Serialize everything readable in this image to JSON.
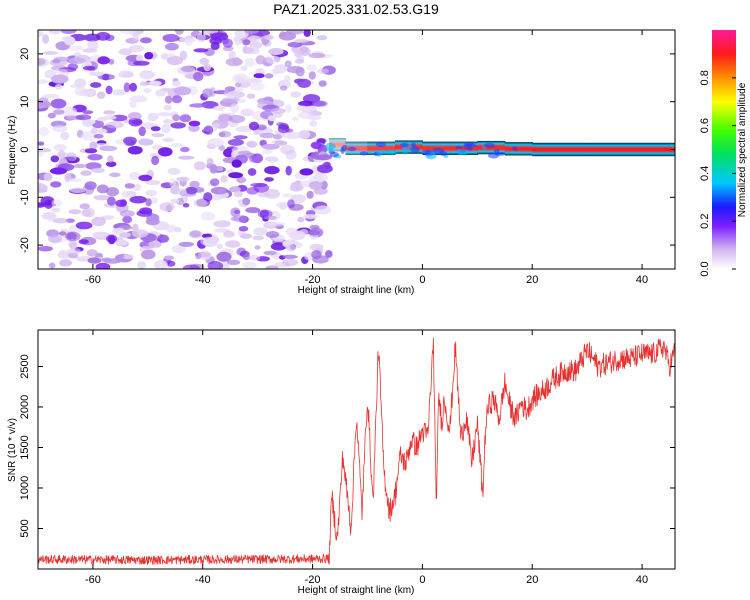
{
  "title": "PAZ1.2025.331.02.53.G19",
  "chart_data": [
    {
      "type": "heatmap",
      "title": "PAZ1.2025.331.02.53.G19",
      "xlabel": "Height of straight line (km)",
      "ylabel": "Frequency (Hz)",
      "xlim": [
        -70,
        46
      ],
      "ylim": [
        -25,
        25
      ],
      "xticks": [
        -60,
        -40,
        -20,
        0,
        20,
        40
      ],
      "yticks": [
        -20,
        -10,
        0,
        10,
        20
      ],
      "xtick_labels": [
        "-60",
        "-40",
        "-20",
        "0",
        "20",
        "40"
      ],
      "ytick_labels": [
        "-20",
        "-10",
        "0",
        "10",
        "20"
      ],
      "noise_region_km": [
        -70,
        -17
      ],
      "signal_onset_km": -17,
      "signal_center_frequency_hz": 0,
      "signal_ridge": [
        {
          "x": -17,
          "freq": 1.5,
          "amp": 0.25
        },
        {
          "x": -14,
          "freq": 0.5,
          "amp": 0.6
        },
        {
          "x": -10,
          "freq": 0.0,
          "amp": 0.8
        },
        {
          "x": -5,
          "freq": 0.5,
          "amp": 0.9
        },
        {
          "x": 0,
          "freq": 0.5,
          "amp": 0.95
        },
        {
          "x": 5,
          "freq": 0.0,
          "amp": 0.9
        },
        {
          "x": 10,
          "freq": 0.5,
          "amp": 0.95
        },
        {
          "x": 15,
          "freq": 0.3,
          "amp": 0.95
        },
        {
          "x": 20,
          "freq": 0.0,
          "amp": 1.0
        },
        {
          "x": 30,
          "freq": 0.0,
          "amp": 1.0
        },
        {
          "x": 46,
          "freq": 0.0,
          "amp": 1.0
        }
      ],
      "colorbar": {
        "label": "Normalized spectral amplitude",
        "range": [
          0.0,
          1.0
        ],
        "ticks": [
          0.0,
          0.2,
          0.4,
          0.6,
          0.8
        ],
        "tick_labels": [
          "0.0",
          "0.2",
          "0.4",
          "0.6",
          "0.8"
        ]
      }
    },
    {
      "type": "line",
      "xlabel": "Height of straight line (km)",
      "ylabel": "SNR (10 * v/v)",
      "xlim": [
        -70,
        46
      ],
      "ylim": [
        0,
        2950
      ],
      "xticks": [
        -60,
        -40,
        -20,
        0,
        20,
        40
      ],
      "yticks": [
        500,
        1000,
        1500,
        2000,
        2500
      ],
      "xtick_labels": [
        "-60",
        "-40",
        "-20",
        "0",
        "20",
        "40"
      ],
      "ytick_labels": [
        "500",
        "1000",
        "1500",
        "2000",
        "2500"
      ],
      "line_color": "#e8312f",
      "noise_fluctuation": 55,
      "series": [
        {
          "name": "SNR",
          "x": [
            -70,
            -60,
            -50,
            -40,
            -30,
            -20,
            -17,
            -16.5,
            -15.5,
            -14.5,
            -13,
            -12,
            -11,
            -10,
            -9,
            -8,
            -7,
            -6,
            -5,
            -4,
            -3,
            -2,
            -1,
            0,
            1,
            2,
            2.5,
            3,
            3.5,
            4,
            5,
            6,
            7,
            8,
            9,
            10,
            11,
            11.5,
            12,
            13,
            14,
            15,
            16,
            17,
            18,
            19,
            20,
            22,
            24,
            26,
            28,
            30,
            31,
            32,
            34,
            36,
            38,
            40,
            42,
            44,
            45,
            46
          ],
          "y": [
            120,
            115,
            110,
            115,
            120,
            125,
            130,
            900,
            350,
            1400,
            500,
            1900,
            700,
            2150,
            800,
            2750,
            1200,
            700,
            900,
            1400,
            1300,
            1600,
            1500,
            1700,
            1650,
            2800,
            780,
            2150,
            1800,
            2100,
            1700,
            2750,
            1600,
            1900,
            1300,
            1800,
            900,
            1750,
            2000,
            2100,
            1850,
            2300,
            2000,
            1850,
            2050,
            1950,
            2100,
            2200,
            2350,
            2450,
            2450,
            2700,
            2600,
            2500,
            2550,
            2600,
            2600,
            2650,
            2650,
            2750,
            2500,
            2700
          ]
        }
      ]
    }
  ]
}
